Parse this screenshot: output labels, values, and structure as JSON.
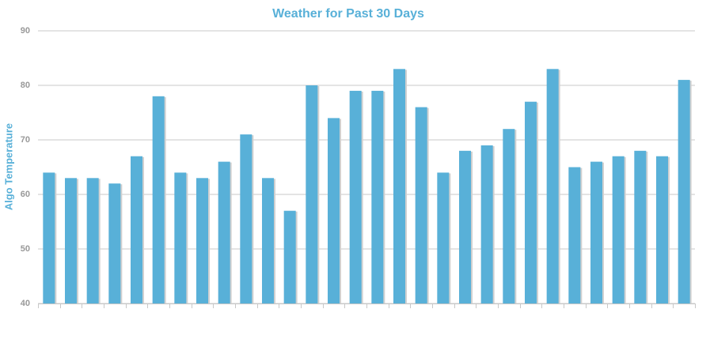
{
  "chart_data": {
    "type": "bar",
    "title": "Weather for Past 30 Days",
    "y_label": "Algo Temperature",
    "categories": [
      null,
      null,
      null,
      null,
      null,
      null,
      null,
      null,
      null,
      null,
      null,
      null,
      null,
      null,
      null,
      null,
      null,
      null,
      null,
      null,
      null,
      null,
      null,
      null,
      null,
      null,
      null,
      null,
      null,
      null
    ],
    "values": [
      64,
      63,
      63,
      62,
      67,
      78,
      64,
      63,
      66,
      71,
      63,
      57,
      80,
      74,
      79,
      79,
      83,
      76,
      64,
      68,
      69,
      72,
      77,
      83,
      65,
      66,
      67,
      68,
      67,
      81
    ],
    "color": "#58b0d8",
    "ylim": [
      40,
      90
    ],
    "yticks": [
      40,
      50,
      60,
      70,
      80,
      90
    ],
    "grid": true
  }
}
